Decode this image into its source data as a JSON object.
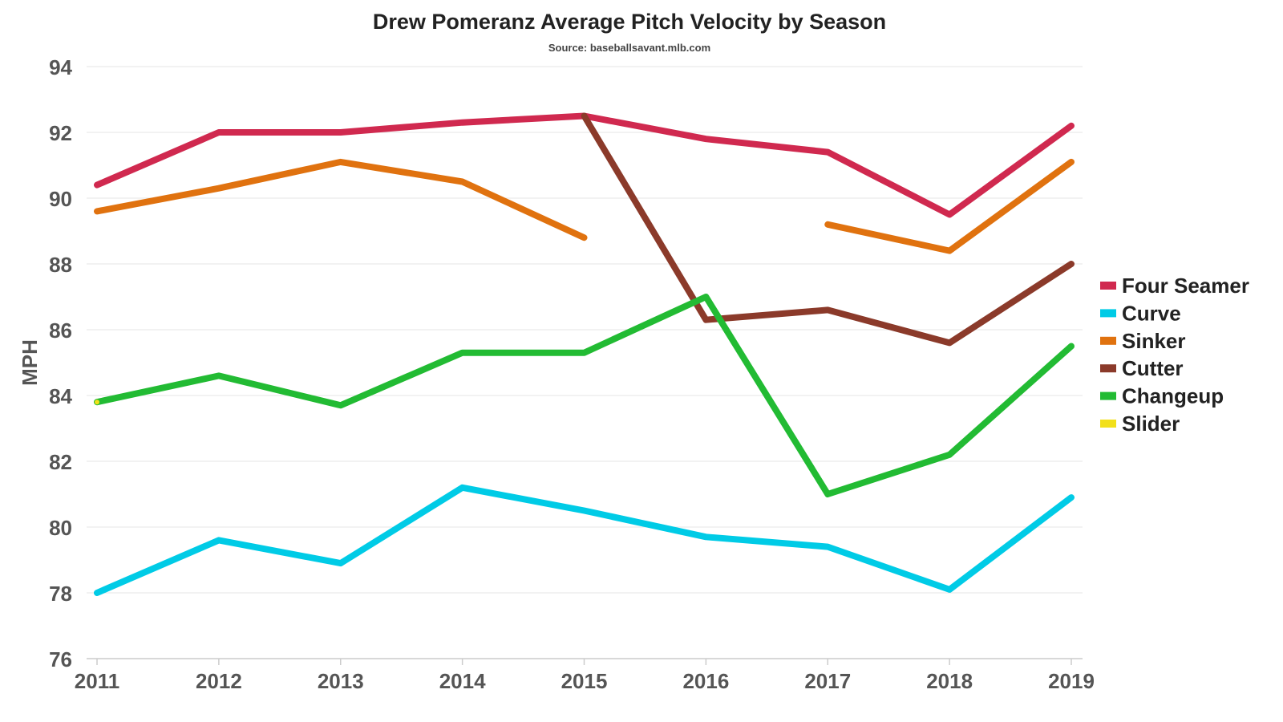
{
  "chart_data": {
    "type": "line",
    "title": "Drew Pomeranz Average Pitch Velocity by Season",
    "subtitle": "Source: baseballsavant.mlb.com",
    "xlabel": "",
    "ylabel": "MPH",
    "x": [
      2011,
      2012,
      2013,
      2014,
      2015,
      2016,
      2017,
      2018,
      2019
    ],
    "x_tick_labels": [
      "2011",
      "2012",
      "2013",
      "2014",
      "2015",
      "2016",
      "2017",
      "2018",
      "2019"
    ],
    "ylim": [
      76,
      94
    ],
    "y_ticks": [
      76,
      78,
      80,
      82,
      84,
      86,
      88,
      90,
      92,
      94
    ],
    "grid": true,
    "legend_position": "right",
    "series": [
      {
        "name": "Four Seamer",
        "color": "#d0294f",
        "values": [
          90.4,
          92.0,
          92.0,
          92.3,
          92.5,
          91.8,
          91.4,
          89.5,
          92.2
        ]
      },
      {
        "name": "Curve",
        "color": "#00cbe6",
        "values": [
          78.0,
          79.6,
          78.9,
          81.2,
          80.5,
          79.7,
          79.4,
          78.1,
          80.9
        ]
      },
      {
        "name": "Sinker",
        "color": "#e0720f",
        "values": [
          89.6,
          90.3,
          91.1,
          90.5,
          88.8,
          null,
          89.2,
          88.4,
          91.1
        ]
      },
      {
        "name": "Cutter",
        "color": "#8b3a2a",
        "values": [
          null,
          null,
          null,
          null,
          92.5,
          86.3,
          86.6,
          85.6,
          88.0
        ]
      },
      {
        "name": "Changeup",
        "color": "#22bb33",
        "values": [
          83.8,
          84.6,
          83.7,
          85.3,
          85.3,
          87.0,
          81.0,
          82.2,
          85.5
        ]
      },
      {
        "name": "Slider",
        "color": "#f2e01a",
        "values": [
          83.8,
          null,
          null,
          null,
          null,
          null,
          null,
          null,
          null
        ]
      }
    ]
  }
}
